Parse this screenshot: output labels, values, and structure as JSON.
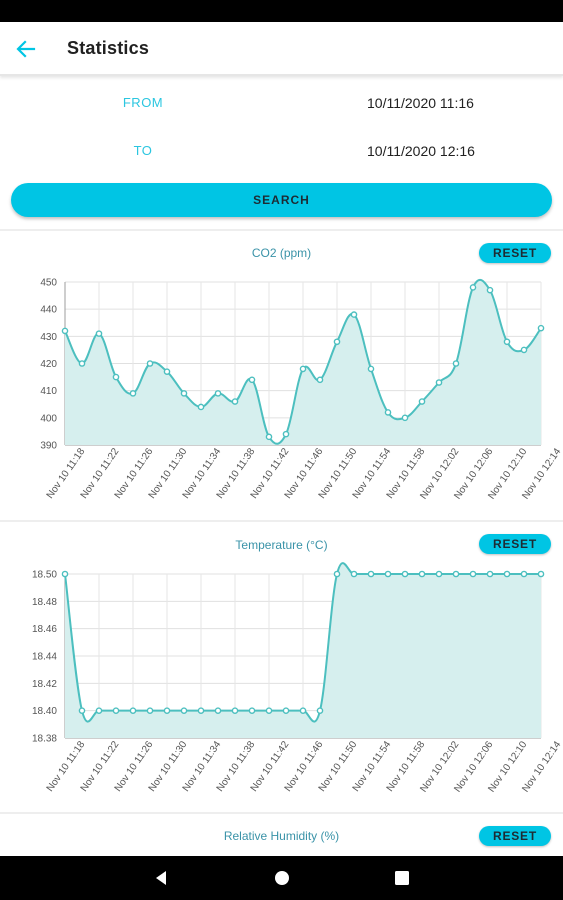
{
  "app": {
    "title": "Statistics",
    "accent": "#00c5e4",
    "label_color": "#2bc6e0",
    "series_color": "#4cbfbf",
    "fill_color": "#d6efee"
  },
  "range": {
    "from_label": "FROM",
    "from_value": "10/11/2020 11:16",
    "to_label": "TO",
    "to_value": "10/11/2020 12:16"
  },
  "search_label": "SEARCH",
  "reset_label": "RESET",
  "icons": {
    "back": "arrow-left-icon",
    "nav_back": "triangle-back-icon",
    "nav_home": "circle-home-icon",
    "nav_recents": "square-recents-icon"
  },
  "chart_data": [
    {
      "type": "area",
      "title": "CO2 (ppm)",
      "ylim": [
        390,
        450
      ],
      "yticks": [
        "390",
        "400",
        "410",
        "420",
        "430",
        "440",
        "450"
      ],
      "xticks": [
        "Nov 10 11:18",
        "Nov 10 11:22",
        "Nov 10 11:26",
        "Nov 10 11:30",
        "Nov 10 11:34",
        "Nov 10 11:38",
        "Nov 10 11:42",
        "Nov 10 11:46",
        "Nov 10 11:50",
        "Nov 10 11:54",
        "Nov 10 11:58",
        "Nov 10 12:02",
        "Nov 10 12:06",
        "Nov 10 12:10",
        "Nov 10 12:14"
      ],
      "grid": true,
      "series": [
        {
          "values": [
            432,
            420,
            431,
            415,
            409,
            420,
            417,
            409,
            404,
            409,
            406,
            414,
            393,
            394,
            418,
            414,
            428,
            438,
            418,
            402,
            400,
            406,
            413,
            420,
            448,
            447,
            428,
            425,
            433
          ]
        }
      ]
    },
    {
      "type": "area",
      "title": "Temperature (°C)",
      "ylim": [
        18.38,
        18.5
      ],
      "yticks": [
        "18.38",
        "18.40",
        "18.42",
        "18.44",
        "18.46",
        "18.48",
        "18.50"
      ],
      "xticks": [
        "Nov 10 11:18",
        "Nov 10 11:22",
        "Nov 10 11:26",
        "Nov 10 11:30",
        "Nov 10 11:34",
        "Nov 10 11:38",
        "Nov 10 11:42",
        "Nov 10 11:46",
        "Nov 10 11:50",
        "Nov 10 11:54",
        "Nov 10 11:58",
        "Nov 10 12:02",
        "Nov 10 12:06",
        "Nov 10 12:10",
        "Nov 10 12:14"
      ],
      "grid": true,
      "series": [
        {
          "values": [
            18.5,
            18.4,
            18.4,
            18.4,
            18.4,
            18.4,
            18.4,
            18.4,
            18.4,
            18.4,
            18.4,
            18.4,
            18.4,
            18.4,
            18.4,
            18.4,
            18.5,
            18.5,
            18.5,
            18.5,
            18.5,
            18.5,
            18.5,
            18.5,
            18.5,
            18.5,
            18.5,
            18.5,
            18.5
          ]
        }
      ]
    },
    {
      "type": "area",
      "title": "Relative Humidity (%)"
    }
  ]
}
